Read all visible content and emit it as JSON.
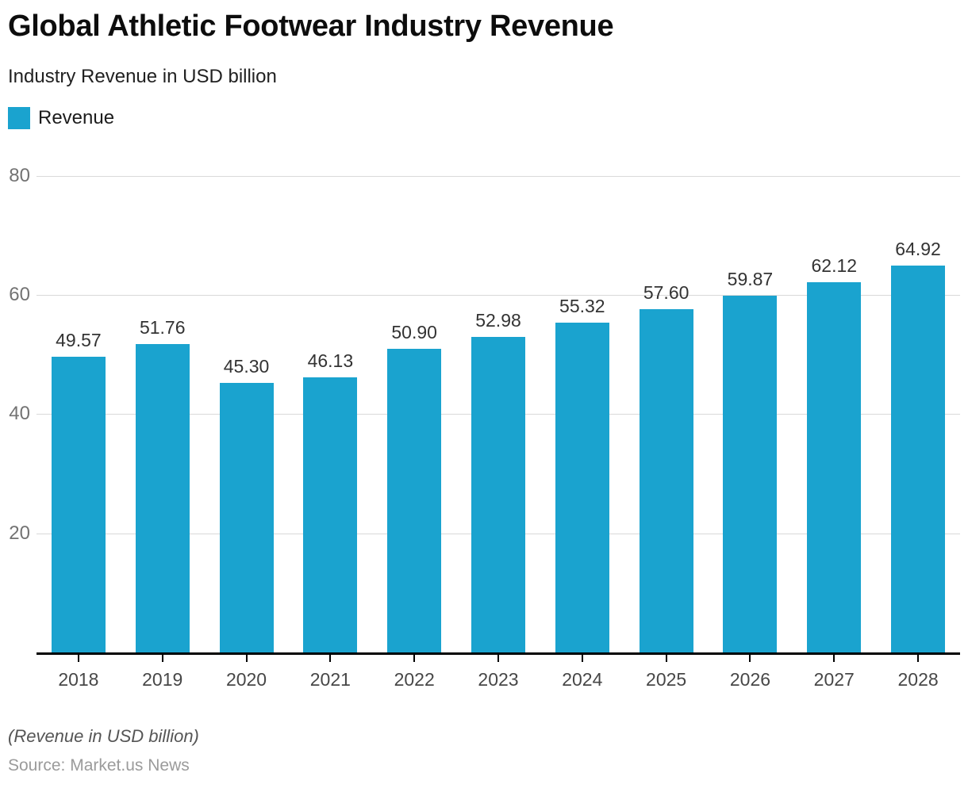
{
  "header": {
    "title": "Global Athletic Footwear Industry Revenue",
    "subtitle": "Industry Revenue in USD billion"
  },
  "legend": {
    "label": "Revenue"
  },
  "chart_data": {
    "type": "bar",
    "title": "Global Athletic Footwear Industry Revenue",
    "subtitle": "Industry Revenue in USD billion",
    "categories": [
      "2018",
      "2019",
      "2020",
      "2021",
      "2022",
      "2023",
      "2024",
      "2025",
      "2026",
      "2027",
      "2028"
    ],
    "series": [
      {
        "name": "Revenue",
        "values": [
          49.57,
          51.76,
          45.3,
          46.13,
          50.9,
          52.98,
          55.32,
          57.6,
          59.87,
          62.12,
          64.92
        ]
      }
    ],
    "value_labels": [
      "49.57",
      "51.76",
      "45.30",
      "46.13",
      "50.90",
      "52.98",
      "55.32",
      "57.60",
      "59.87",
      "62.12",
      "64.92"
    ],
    "xlabel": "",
    "ylabel": "",
    "ylim": [
      0,
      80
    ],
    "yticks": [
      20,
      40,
      60,
      80
    ],
    "grid": true,
    "legend_position": "top-left"
  },
  "footer": {
    "note": "(Revenue in USD billion)",
    "source": "Source: Market.us News"
  },
  "colors": {
    "bar": "#1AA3CF",
    "grid": "#D9D9D9",
    "axis": "#000000",
    "value_label": "#333333",
    "tick_label": "#737373",
    "category_label": "#474747"
  }
}
